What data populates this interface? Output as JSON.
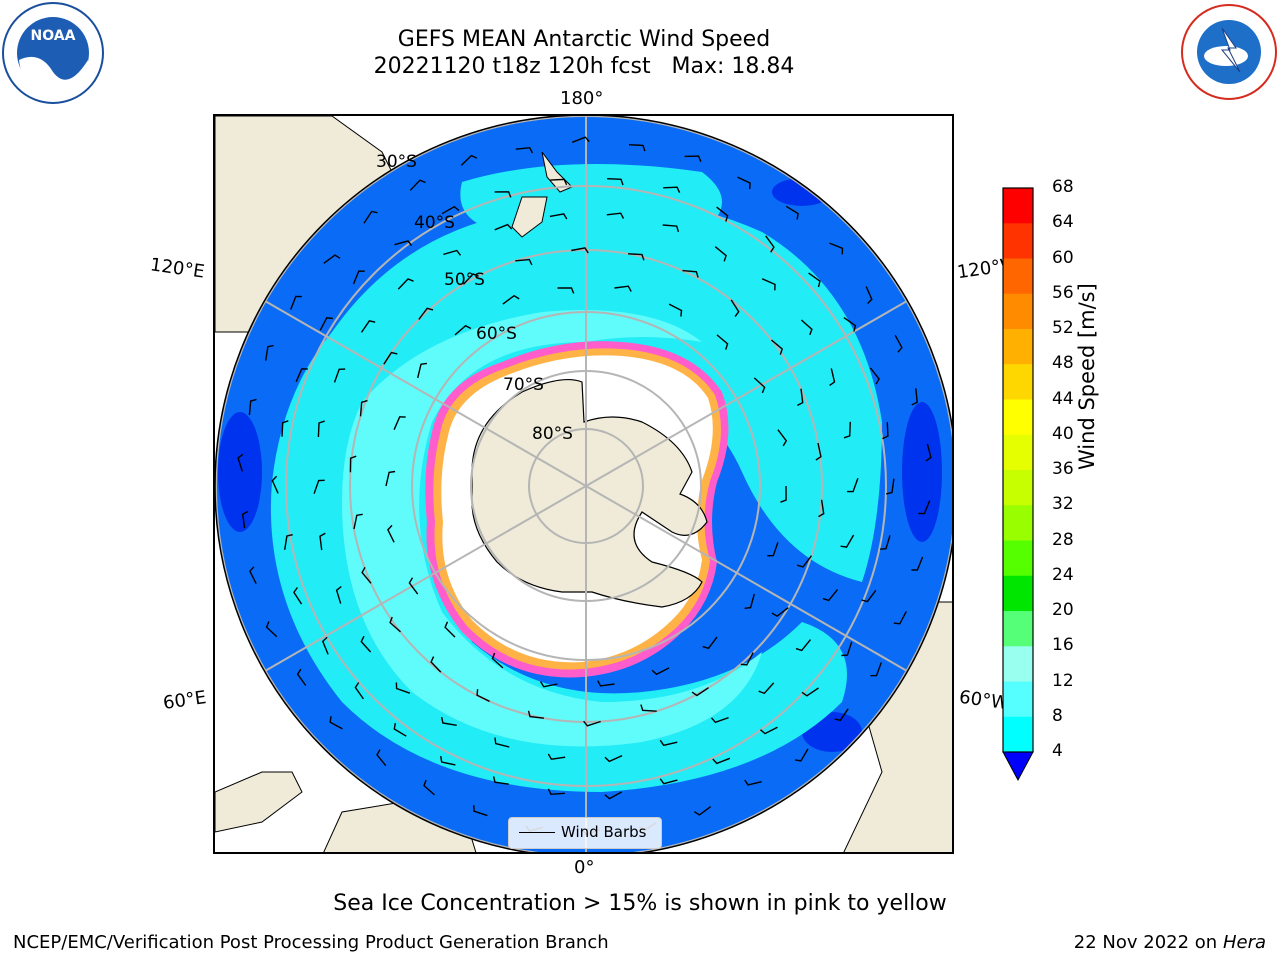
{
  "title": "GEFS MEAN Antarctic Wind Speed",
  "subtitle": "20221120 t18z 120h fcst   Max: 18.84",
  "map": {
    "longitude_labels": {
      "top": "180°",
      "bottom": "0°",
      "upper_left": "120°E",
      "lower_left": "60°E",
      "upper_right": "120°W",
      "lower_right": "60°W"
    },
    "latitude_labels": [
      "30°S",
      "40°S",
      "50°S",
      "60°S",
      "70°S",
      "80°S"
    ],
    "legend": "Wind Barbs",
    "colors": {
      "land": "#efebd8",
      "ocean_low": "#0064ff",
      "ocean_mid": "#00ffff",
      "ice_edge": "#ff66cc",
      "ice_fringe": "#ffb347"
    }
  },
  "colorbar": {
    "label": "Wind Speed [m/s]",
    "ticks": [
      "68",
      "64",
      "60",
      "56",
      "52",
      "48",
      "44",
      "40",
      "36",
      "32",
      "28",
      "24",
      "20",
      "16",
      "12",
      "8",
      "4"
    ],
    "colors": [
      "#ff0000",
      "#ff3300",
      "#ff6600",
      "#ff8c00",
      "#ffb000",
      "#ffd700",
      "#ffff00",
      "#e6ff00",
      "#c8ff00",
      "#99ff00",
      "#55ff00",
      "#00e600",
      "#55ff77",
      "#99ffee",
      "#55ffff",
      "#00ffff",
      "#0080ff"
    ],
    "under_color": "#0000ff"
  },
  "note": "Sea Ice Concentration > 15% is shown in pink to yellow",
  "footer": {
    "left": "NCEP/EMC/Verification Post Processing Product Generation Branch",
    "date": "22 Nov 2022 on",
    "machine": "Hera"
  },
  "logos": {
    "left": "NOAA",
    "right": "NATIONAL WEATHER SERVICE"
  }
}
